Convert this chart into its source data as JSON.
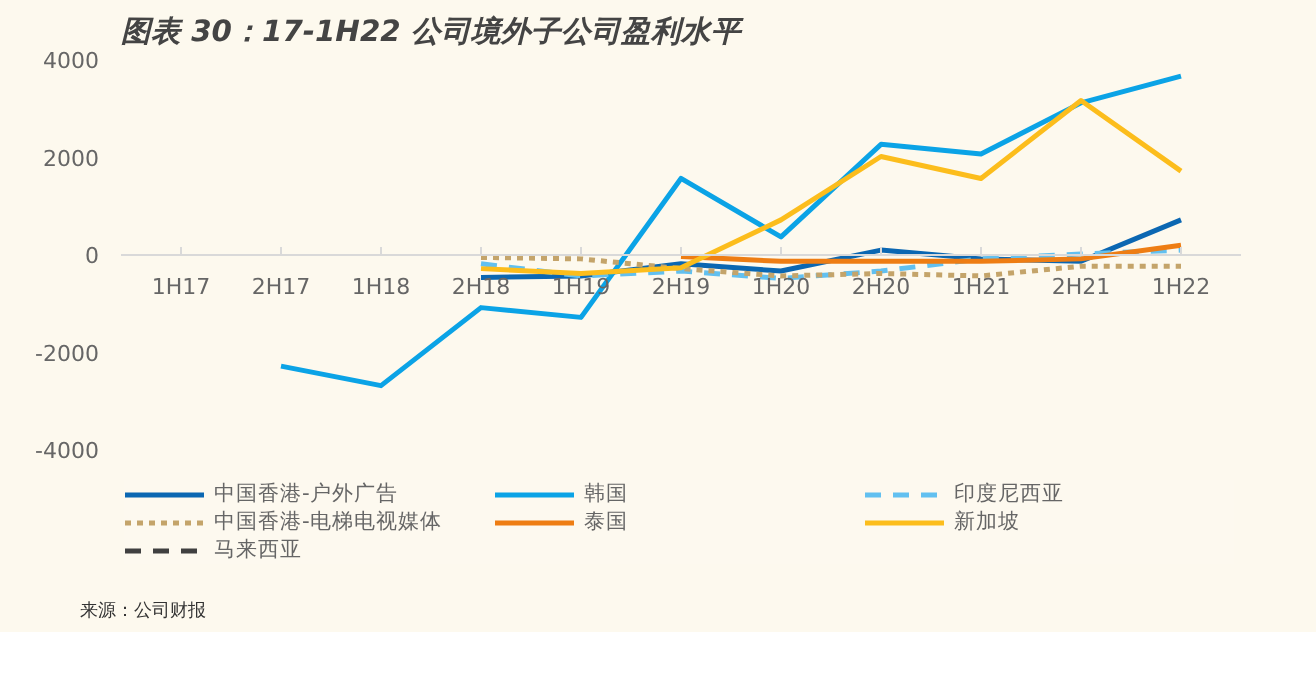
{
  "chart_data": {
    "type": "line",
    "title": "图表 30：17-1H22 公司境外子公司盈利水平",
    "categories": [
      "1H17",
      "2H17",
      "1H18",
      "2H18",
      "1H19",
      "2H19",
      "1H20",
      "2H20",
      "1H21",
      "2H21",
      "1H22"
    ],
    "ylim": [
      -4000,
      4000
    ],
    "yticks": [
      -4000,
      -2000,
      0,
      2000,
      4000
    ],
    "grid": false,
    "legend": "bottom",
    "annotations": [
      "来源：公司财报"
    ],
    "series": [
      {
        "name": "中国香港-户外广告",
        "color": "#0b67b2",
        "line_style": "solid",
        "values": [
          null,
          null,
          null,
          -480,
          -450,
          -200,
          -350,
          80,
          -100,
          -150,
          700
        ]
      },
      {
        "name": "韩国",
        "color": "#0ba3e6",
        "line_style": "solid",
        "values": [
          null,
          -2300,
          -2700,
          -1100,
          -1300,
          1550,
          350,
          2250,
          2050,
          3100,
          3650
        ]
      },
      {
        "name": "印度尼西亚",
        "color": "#62c0f0",
        "line_style": "dashed",
        "values": [
          null,
          null,
          null,
          -200,
          -450,
          -350,
          -500,
          -350,
          -100,
          0,
          80
        ]
      },
      {
        "name": "中国香港-电梯电视媒体",
        "color": "#c4a46a",
        "line_style": "dotted",
        "values": [
          null,
          null,
          null,
          -70,
          -100,
          -300,
          -450,
          -400,
          -450,
          -250,
          -250
        ]
      },
      {
        "name": "泰国",
        "color": "#ee7d13",
        "line_style": "solid",
        "values": [
          null,
          null,
          null,
          null,
          null,
          -50,
          -150,
          -150,
          -150,
          -100,
          180
        ]
      },
      {
        "name": "新加坡",
        "color": "#fcbd1c",
        "line_style": "solid",
        "values": [
          null,
          null,
          null,
          -300,
          -400,
          -280,
          700,
          2000,
          1550,
          3150,
          1700
        ]
      },
      {
        "name": "马来西亚",
        "color": "#404040",
        "line_style": "dashed",
        "values": [
          null,
          null,
          null,
          null,
          null,
          null,
          null,
          null,
          null,
          null,
          null
        ]
      }
    ]
  }
}
